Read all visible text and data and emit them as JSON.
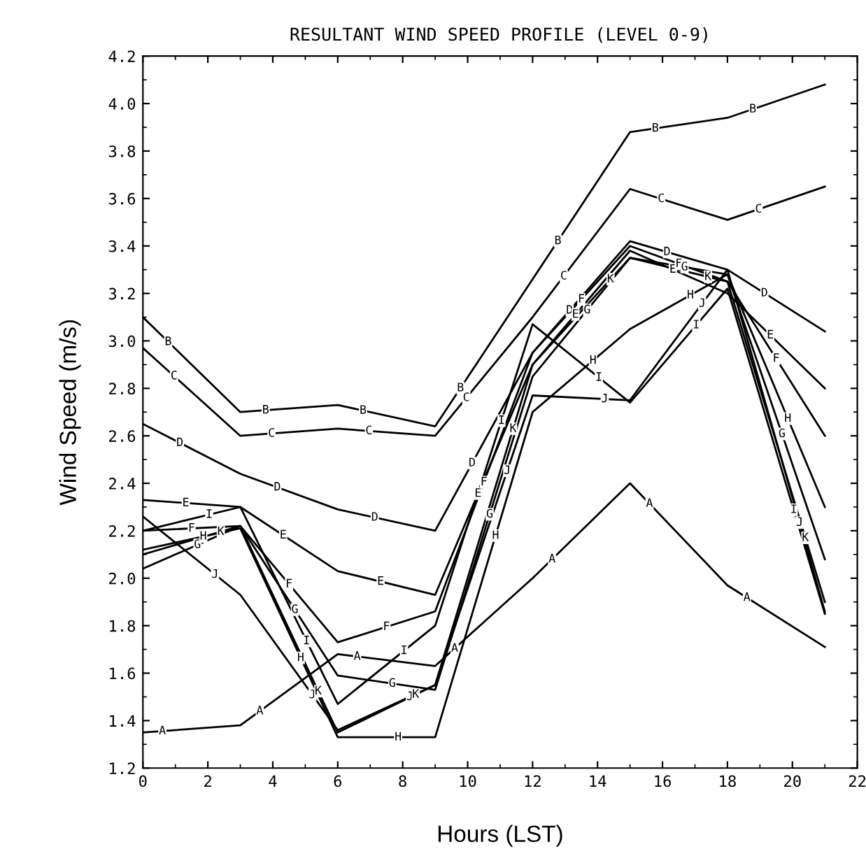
{
  "chart_data": {
    "type": "line",
    "title": "RESULTANT WIND SPEED PROFILE (LEVEL 0-9)",
    "xlabel": "Hours (LST)",
    "ylabel": "Wind Speed (m/s)",
    "x": [
      0,
      3,
      6,
      9,
      12,
      15,
      18,
      21
    ],
    "series": [
      {
        "name": "A",
        "color": "#000000",
        "values": [
          1.35,
          1.38,
          1.68,
          1.63,
          2.0,
          2.4,
          1.97,
          1.71
        ]
      },
      {
        "name": "B",
        "color": "#000000",
        "values": [
          3.1,
          2.7,
          2.73,
          2.64,
          3.26,
          3.88,
          3.94,
          4.08
        ]
      },
      {
        "name": "C",
        "color": "#000000",
        "values": [
          2.97,
          2.6,
          2.63,
          2.6,
          3.1,
          3.64,
          3.51,
          3.65
        ]
      },
      {
        "name": "D",
        "color": "#000000",
        "values": [
          2.65,
          2.44,
          2.29,
          2.2,
          2.95,
          3.42,
          3.3,
          3.04
        ]
      },
      {
        "name": "E",
        "color": "#000000",
        "values": [
          2.33,
          2.3,
          2.03,
          1.93,
          2.9,
          3.38,
          3.2,
          2.8
        ]
      },
      {
        "name": "F",
        "color": "#000000",
        "values": [
          2.2,
          2.22,
          1.73,
          1.86,
          2.95,
          3.4,
          3.25,
          2.6
        ]
      },
      {
        "name": "G",
        "color": "#000000",
        "values": [
          2.04,
          2.22,
          1.59,
          1.53,
          2.85,
          3.35,
          3.28,
          2.08
        ]
      },
      {
        "name": "H",
        "color": "#000000",
        "values": [
          2.12,
          2.21,
          1.33,
          1.33,
          2.7,
          3.05,
          3.28,
          2.3
        ]
      },
      {
        "name": "I",
        "color": "#000000",
        "values": [
          2.2,
          2.3,
          1.47,
          1.8,
          3.07,
          2.74,
          3.22,
          1.85
        ]
      },
      {
        "name": "J",
        "color": "#000000",
        "values": [
          2.26,
          1.93,
          1.36,
          1.55,
          2.77,
          2.75,
          3.3,
          1.86
        ]
      },
      {
        "name": "K",
        "color": "#000000",
        "values": [
          2.1,
          2.22,
          1.35,
          1.55,
          2.9,
          3.35,
          3.25,
          1.9
        ]
      }
    ],
    "xlim": [
      0,
      22
    ],
    "xticks": [
      0,
      2,
      4,
      6,
      8,
      10,
      12,
      14,
      16,
      18,
      20,
      22
    ],
    "ylim": [
      1.2,
      4.2
    ],
    "yticks": [
      1.2,
      1.4,
      1.6,
      1.8,
      {
        "value": 2.0,
        "label": "2.0"
      },
      2.2,
      2.4,
      2.6,
      2.8,
      {
        "value": 3.0,
        "label": "3.0"
      },
      3.2,
      3.4,
      3.6,
      3.8,
      {
        "value": 4.0,
        "label": "4.0"
      },
      4.2
    ],
    "grid": false,
    "legend": false,
    "marker": "none",
    "line_style": "solid"
  }
}
